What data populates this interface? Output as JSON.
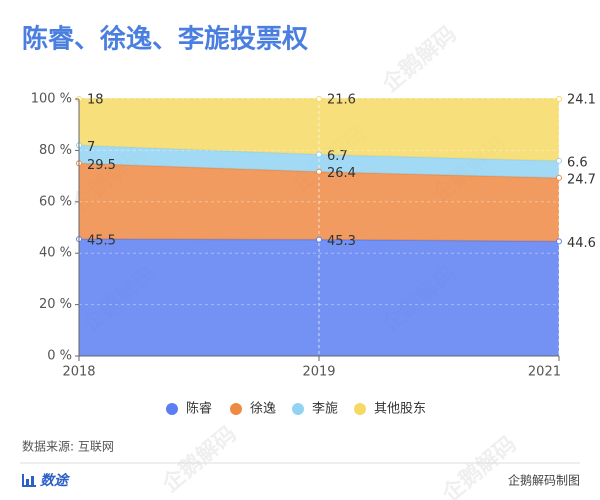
{
  "chart_data": {
    "type": "stacked_area_percent",
    "title": "陈睿、徐逸、李旎投票权",
    "categories": [
      "2018",
      "2019",
      "2021"
    ],
    "series": [
      {
        "name": "陈睿",
        "color": "#5b7ff2",
        "values": [
          45.5,
          45.3,
          44.6
        ]
      },
      {
        "name": "徐逸",
        "color": "#ef8a45",
        "values": [
          29.5,
          26.4,
          24.7
        ]
      },
      {
        "name": "李旎",
        "color": "#92d3f3",
        "values": [
          7,
          6.7,
          6.6
        ]
      },
      {
        "name": "其他股东",
        "color": "#f6d964",
        "values": [
          18,
          21.6,
          24.1
        ]
      }
    ],
    "ylim": [
      0,
      100
    ],
    "yticks": [
      {
        "value": 0,
        "label": "0 %"
      },
      {
        "value": 20,
        "label": "20 %"
      },
      {
        "value": 40,
        "label": "40 %"
      },
      {
        "value": 60,
        "label": "60 %"
      },
      {
        "value": 80,
        "label": "80 %"
      },
      {
        "value": 100,
        "label": "100 %"
      }
    ],
    "grid": true,
    "legend": "bottom",
    "source": "数据来源: 互联网",
    "brand": "数途",
    "credit": "企鹅解码制图",
    "watermark": "企鹅解码"
  }
}
